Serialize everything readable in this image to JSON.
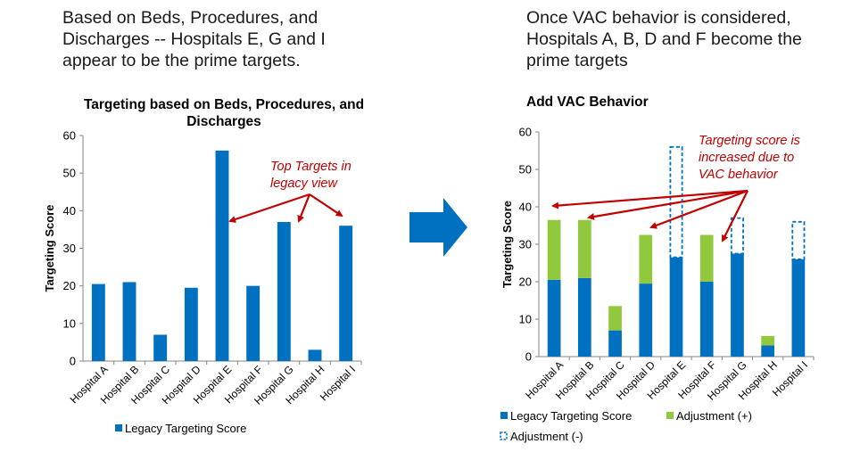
{
  "captions": {
    "left": "Based on Beds, Procedures, and Discharges -- Hospitals E, G and I appear to be the prime targets.",
    "right": "Once VAC behavior is considered, Hospitals A, B, D and F become the prime targets"
  },
  "colors": {
    "legacy": "#0070c0",
    "adjust_plus": "#92c83e",
    "adjust_minus": "#0070c0",
    "annotation": "#c00000",
    "arrow": "#0070c0"
  },
  "chart_data": [
    {
      "type": "bar",
      "title": "Targeting based on Beds, Procedures, and Discharges",
      "ylabel": "Targeting Score",
      "xlabel": "",
      "ylim": [
        0,
        60
      ],
      "yticks": [
        0,
        10,
        20,
        30,
        40,
        50,
        60
      ],
      "categories": [
        "Hospital A",
        "Hospital B",
        "Hospital C",
        "Hospital D",
        "Hospital E",
        "Hospital F",
        "Hospital G",
        "Hospital H",
        "Hospital I"
      ],
      "series": [
        {
          "name": "Legacy Targeting Score",
          "values": [
            20.5,
            21,
            7,
            19.5,
            56,
            20,
            37,
            3,
            36
          ]
        }
      ],
      "legend": "bottom",
      "annotation": "Top Targets in legacy view"
    },
    {
      "type": "bar",
      "stacked": true,
      "title": "Add VAC Behavior",
      "ylabel": "Targeting Score",
      "xlabel": "",
      "ylim": [
        0,
        60
      ],
      "yticks": [
        0,
        10,
        20,
        30,
        40,
        50,
        60
      ],
      "categories": [
        "Hospital A",
        "Hospital B",
        "Hospital C",
        "Hospital D",
        "Hospital E",
        "Hospital F",
        "Hospital G",
        "Hospital H",
        "Hospital I"
      ],
      "series": [
        {
          "name": "Legacy Targeting Score",
          "values": [
            20.5,
            21,
            7,
            19.5,
            26.5,
            20,
            27.5,
            3,
            26
          ]
        },
        {
          "name": "Adjustment (+)",
          "values": [
            16,
            15.5,
            6.5,
            13,
            0,
            12.5,
            0,
            2.5,
            0
          ]
        },
        {
          "name": "Adjustment (-)",
          "values": [
            0,
            0,
            0,
            0,
            29.5,
            0,
            9.5,
            0,
            10
          ]
        }
      ],
      "legend": "bottom",
      "annotation": "Targeting score is increased due to VAC behavior"
    }
  ],
  "annotations": {
    "left_lines": [
      "Top Targets in",
      "legacy view"
    ],
    "right_lines": [
      "Targeting score is",
      "increased due to",
      "VAC behavior"
    ]
  }
}
